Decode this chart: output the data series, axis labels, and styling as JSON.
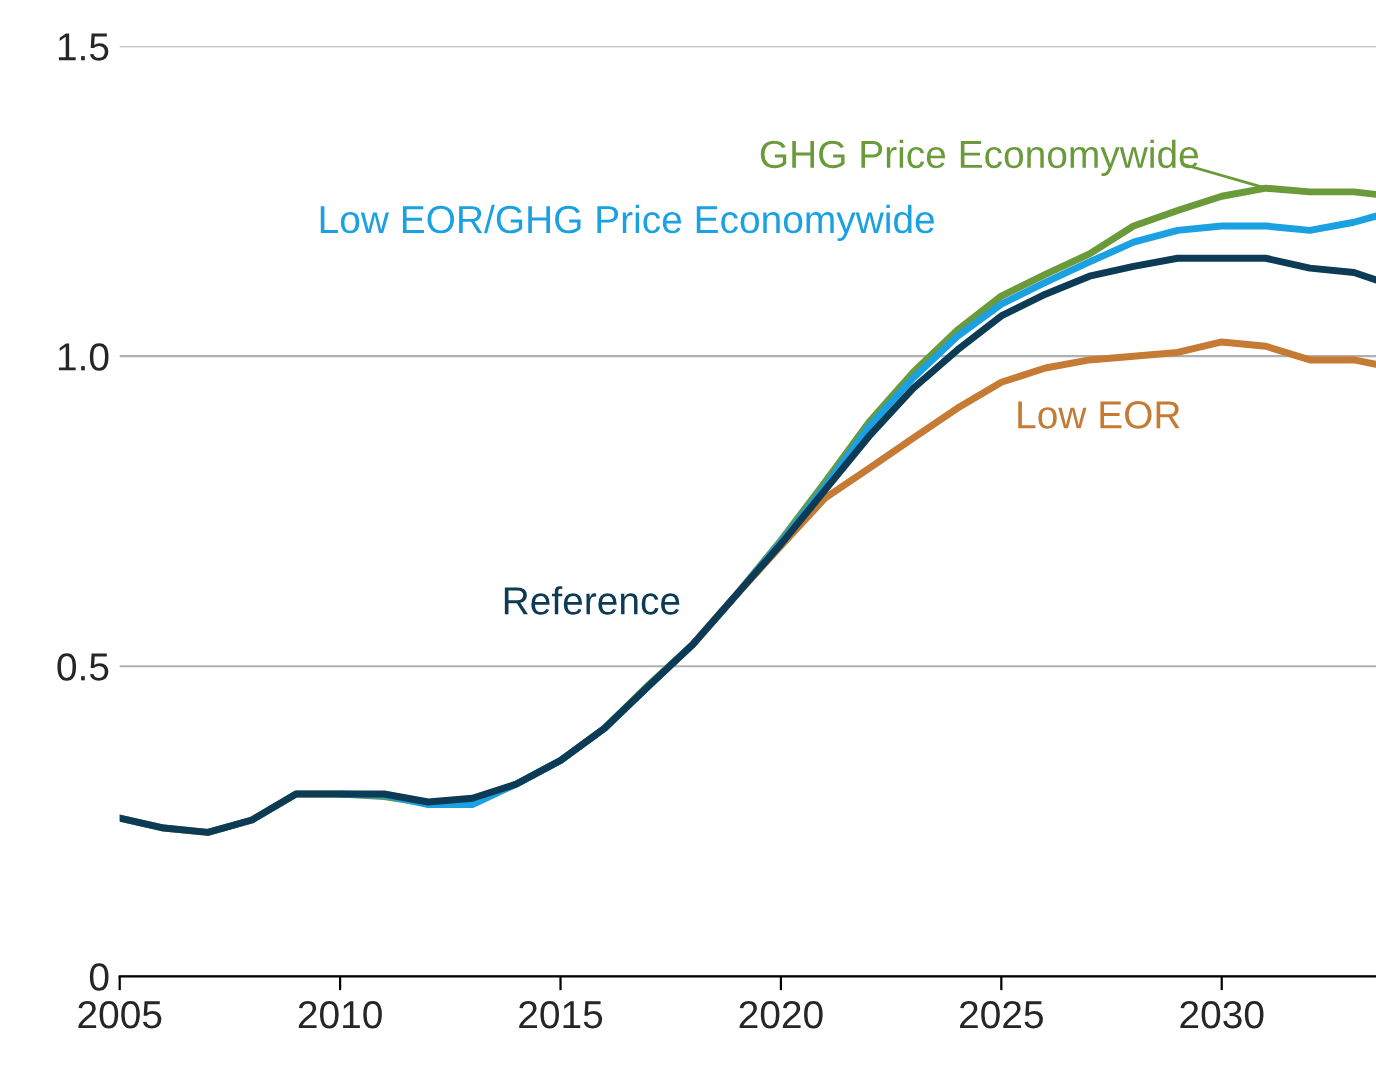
{
  "chart_data": {
    "type": "line",
    "x": [
      2005,
      2006,
      2007,
      2008,
      2009,
      2010,
      2011,
      2012,
      2013,
      2014,
      2015,
      2016,
      2017,
      2018,
      2019,
      2020,
      2021,
      2022,
      2023,
      2024,
      2025,
      2026,
      2027,
      2028,
      2029,
      2030,
      2031,
      2032,
      2033,
      2033.5
    ],
    "series": [
      {
        "name": "GHG Price Economywide",
        "color": "#6a9a3a",
        "values": [
          0.255,
          0.239,
          0.232,
          0.252,
          0.294,
          0.294,
          0.29,
          0.279,
          0.283,
          0.31,
          0.348,
          0.4,
          0.47,
          0.535,
          0.616,
          0.703,
          0.797,
          0.894,
          0.974,
          1.042,
          1.097,
          1.132,
          1.165,
          1.21,
          1.235,
          1.258,
          1.271,
          1.265,
          1.265,
          1.261
        ]
      },
      {
        "name": "Low EOR/GHG Price Economywide",
        "color": "#1ba1e2",
        "values": [
          null,
          null,
          null,
          null,
          null,
          0.294,
          0.292,
          0.277,
          0.277,
          0.31,
          0.348,
          0.4,
          0.468,
          0.535,
          0.616,
          0.7,
          0.79,
          0.887,
          0.965,
          1.032,
          1.084,
          1.119,
          1.152,
          1.184,
          1.203,
          1.21,
          1.21,
          1.203,
          1.216,
          1.226
        ]
      },
      {
        "name": "Low EOR",
        "color": "#c67b35",
        "values": [
          null,
          null,
          null,
          null,
          null,
          null,
          null,
          null,
          null,
          null,
          null,
          null,
          null,
          0.535,
          0.616,
          0.694,
          0.771,
          0.819,
          0.868,
          0.916,
          0.958,
          0.981,
          0.994,
          1.0,
          1.006,
          1.023,
          1.016,
          0.994,
          0.994,
          0.987
        ]
      },
      {
        "name": "Reference",
        "color": "#0d3b55",
        "values": [
          0.255,
          0.239,
          0.232,
          0.252,
          0.294,
          0.294,
          0.294,
          0.281,
          0.287,
          0.31,
          0.348,
          0.4,
          0.468,
          0.535,
          0.616,
          0.697,
          0.784,
          0.871,
          0.948,
          1.01,
          1.065,
          1.1,
          1.129,
          1.145,
          1.158,
          1.158,
          1.158,
          1.142,
          1.135,
          1.123
        ]
      }
    ],
    "xlim": [
      2005,
      2033.5
    ],
    "xticks": [
      2005,
      2010,
      2015,
      2020,
      2025,
      2030
    ],
    "ylim": [
      0,
      1.5
    ],
    "yticks": [
      0,
      0.5,
      {
        "value": 1.0,
        "label": "1.0"
      },
      1.5
    ],
    "grid": "y",
    "legend": false,
    "line_style": "solid",
    "marker": "none"
  }
}
